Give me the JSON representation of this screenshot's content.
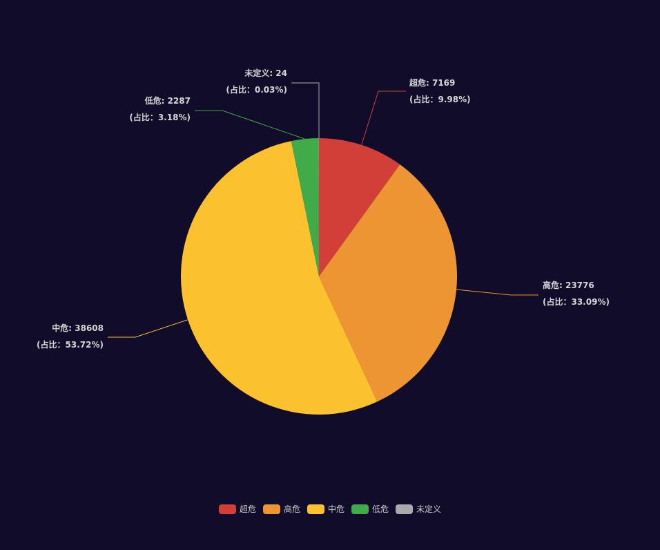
{
  "chart_data": {
    "type": "pie",
    "series": [
      {
        "name": "超危",
        "value": 7169,
        "pct": "9.98%",
        "color": "#d23e38"
      },
      {
        "name": "高危",
        "value": 23776,
        "pct": "33.09%",
        "color": "#ed9433"
      },
      {
        "name": "中危",
        "value": 38608,
        "pct": "53.72%",
        "color": "#fcc12e"
      },
      {
        "name": "低危",
        "value": 2287,
        "pct": "3.18%",
        "color": "#40ab48"
      },
      {
        "name": "未定义",
        "value": 24,
        "pct": "0.03%",
        "color": "#aaaaaa"
      }
    ],
    "label_prefix": "(占比：",
    "label_suffix": ")",
    "legend_position": "bottom"
  }
}
